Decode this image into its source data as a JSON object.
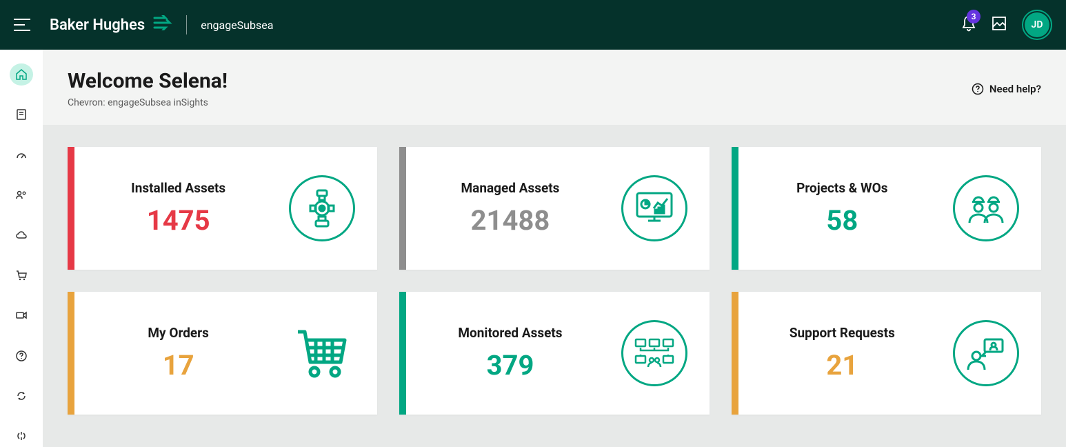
{
  "topbar": {
    "brand_main": "Baker Hughes",
    "brand_sub": "engageSubsea",
    "notification_count": "3",
    "avatar_initials": "JD"
  },
  "header": {
    "welcome_title": "Welcome Selena!",
    "subtitle": "Chevron: engageSubsea inSights",
    "help_label": "Need help?"
  },
  "colors": {
    "teal": "#02a783",
    "red": "#e63946",
    "grey": "#8e8e8e",
    "amber": "#e8a33d",
    "topbar_bg": "#05322b",
    "badge_bg": "#6534e0"
  },
  "cards": [
    {
      "title": "Installed Assets",
      "value": "1475",
      "accent": "#e63946",
      "value_color": "#e63946",
      "icon": "valve"
    },
    {
      "title": "Managed Assets",
      "value": "21488",
      "accent": "#8e8e8e",
      "value_color": "#8e8e8e",
      "icon": "monitor-chart"
    },
    {
      "title": "Projects & WOs",
      "value": "58",
      "accent": "#02a783",
      "value_color": "#02a783",
      "icon": "workers"
    },
    {
      "title": "My Orders",
      "value": "17",
      "accent": "#e8a33d",
      "value_color": "#e8a33d",
      "icon": "cart"
    },
    {
      "title": "Monitored Assets",
      "value": "379",
      "accent": "#02a783",
      "value_color": "#02a783",
      "icon": "screens-group"
    },
    {
      "title": "Support Requests",
      "value": "21",
      "accent": "#e8a33d",
      "value_color": "#e8a33d",
      "icon": "support-person"
    }
  ]
}
